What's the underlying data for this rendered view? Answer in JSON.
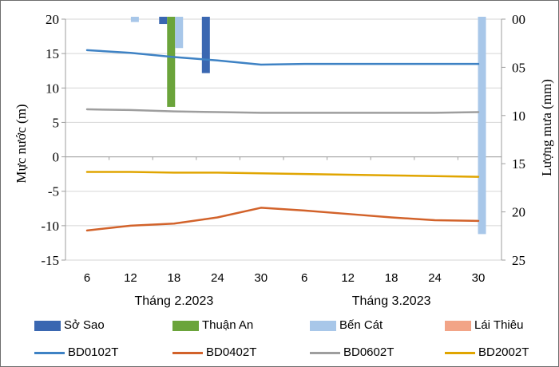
{
  "chart_data": {
    "type": "combo: inverted rainfall bars (top-down) + water-level lines",
    "title": "",
    "left_axis": {
      "title": "Mực nước (m)",
      "ticks": [
        20,
        15,
        10,
        5,
        0,
        -5,
        -10,
        -15
      ],
      "range": [
        -15,
        20
      ],
      "grid": true
    },
    "right_axis": {
      "title": "Lượng mưa (mm)",
      "tick_labels": [
        "00",
        "05",
        "10",
        "15",
        "20",
        "25"
      ],
      "range": [
        0,
        25
      ],
      "note": "0 at top; rain bars hang downward from top"
    },
    "x_axis": {
      "months": [
        {
          "label": "Tháng 2.2023",
          "ticks": [
            "6",
            "12",
            "18",
            "24",
            "30"
          ]
        },
        {
          "label": "Tháng 3.2023",
          "ticks": [
            "6",
            "12",
            "18",
            "24",
            "30"
          ]
        }
      ]
    },
    "bar_series": [
      {
        "name": "Sở Sao",
        "color": "#3A67B1",
        "points": [
          {
            "month": 0,
            "day": 16.5,
            "mm": 0.5
          },
          {
            "month": 0,
            "day": 22.4,
            "mm": 5.6
          }
        ]
      },
      {
        "name": "Thuận An",
        "color": "#6BA43B",
        "points": [
          {
            "month": 0,
            "day": 17.6,
            "mm": 9.1
          }
        ]
      },
      {
        "name": "Bến Cát",
        "color": "#A8C7E9",
        "points": [
          {
            "month": 0,
            "day": 12.6,
            "mm": 0.3
          },
          {
            "month": 0,
            "day": 18.7,
            "mm": 3.0
          },
          {
            "month": 1,
            "day": 30.5,
            "mm": 22.3
          }
        ]
      },
      {
        "name": "Lái Thiêu",
        "color": "#F2A487",
        "points": []
      }
    ],
    "line_series": [
      {
        "name": "BD0102T",
        "color": "#3E82C4",
        "values": [
          15.5,
          15.1,
          14.5,
          14.0,
          13.4,
          13.5,
          13.5,
          13.5,
          13.5,
          13.5
        ]
      },
      {
        "name": "BD0402T",
        "color": "#D2622A",
        "values": [
          -10.7,
          -10.0,
          -9.7,
          -8.8,
          -7.4,
          -7.8,
          -8.3,
          -8.8,
          -9.2,
          -9.3
        ]
      },
      {
        "name": "BD0602T",
        "color": "#9E9E9E",
        "values": [
          6.9,
          6.8,
          6.6,
          6.5,
          6.4,
          6.4,
          6.4,
          6.4,
          6.4,
          6.5
        ]
      },
      {
        "name": "BD2002T",
        "color": "#E0A500",
        "values": [
          -2.2,
          -2.2,
          -2.3,
          -2.3,
          -2.4,
          -2.5,
          -2.6,
          -2.7,
          -2.8,
          -2.9
        ]
      }
    ],
    "x_sample_days": [
      "6",
      "12",
      "18",
      "24",
      "30",
      "6",
      "12",
      "18",
      "24",
      "30"
    ],
    "colors": {
      "gridline": "#D6D6D6",
      "axis": "#9E9E9E",
      "text": "#000000"
    }
  },
  "legend": {
    "bar_row": [
      "Sở Sao",
      "Thuận An",
      "Bến Cát",
      "Lái Thiêu"
    ],
    "line_row": [
      "BD0102T",
      "BD0402T",
      "BD0602T",
      "BD2002T"
    ]
  }
}
